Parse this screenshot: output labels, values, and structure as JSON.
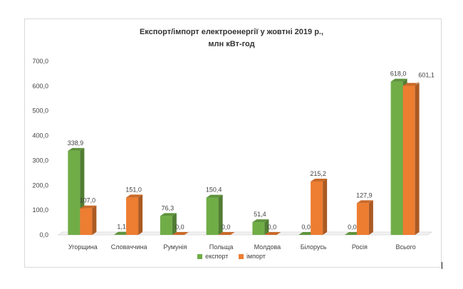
{
  "chart_data": {
    "type": "bar",
    "title_line1": "Експорт/імпорт електроенергії у жовтні 2019 р.,",
    "title_line2": "млн кВт-год",
    "categories": [
      "Угорщина",
      "Словаччина",
      "Румунія",
      "Польща",
      "Молдова",
      "Білорусь",
      "Росія",
      "Всього"
    ],
    "series": [
      {
        "name": "експорт",
        "color": "#70ad47",
        "values": [
          338.9,
          1.1,
          76.3,
          150.4,
          51.4,
          0.0,
          0.0,
          618.0
        ],
        "labels": [
          "338,9",
          "1,1",
          "76,3",
          "150,4",
          "51,4",
          "0,0",
          "0,0",
          "618,0"
        ]
      },
      {
        "name": "імпорт",
        "color": "#ed7d31",
        "values": [
          107.0,
          151.0,
          0.0,
          0.0,
          0.0,
          215.2,
          127.9,
          601.1
        ],
        "labels": [
          "107,0",
          "151,0",
          "0,0",
          "0,0",
          "0,0",
          "215,2",
          "127,9",
          "601,1"
        ]
      }
    ],
    "y_ticks": [
      "0,0",
      "100,0",
      "200,0",
      "300,0",
      "400,0",
      "500,0",
      "600,0",
      "700,0"
    ],
    "ylim": [
      0,
      700
    ],
    "grid": false,
    "legend_position": "bottom",
    "style": "3d-clustered-column"
  }
}
